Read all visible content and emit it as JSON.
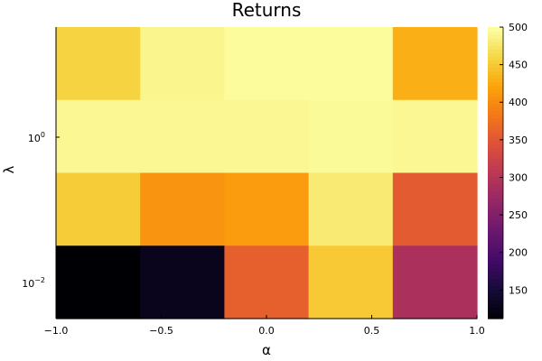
{
  "chart_data": {
    "type": "heatmap",
    "title": "Returns",
    "xlabel": "α",
    "ylabel": "λ",
    "x_tick_labels": [
      "−1.0",
      "−0.5",
      "0.0",
      "0.5",
      "1.0"
    ],
    "x_ticks": [
      -1.0,
      -0.5,
      0.0,
      0.5,
      1.0
    ],
    "xlim": [
      -1.0,
      1.0
    ],
    "y_scale": "log",
    "y_tick_labels": [
      {
        "base": "10",
        "exp": "0",
        "value": 1
      },
      {
        "base": "10",
        "exp": "−2",
        "value": 0.01
      }
    ],
    "x_centers": [
      -0.8,
      -0.4,
      0.0,
      0.4,
      0.8
    ],
    "row_order": "top-to-bottom",
    "values": [
      [
        458,
        490,
        497,
        497,
        430
      ],
      [
        493,
        493,
        493,
        495,
        493
      ],
      [
        453,
        408,
        415,
        480,
        355
      ],
      [
        112,
        130,
        360,
        450,
        290
      ]
    ],
    "colorbar": {
      "range": [
        112,
        500
      ],
      "ticks": [
        150,
        200,
        250,
        300,
        350,
        400,
        450,
        500
      ],
      "colormap": "inferno"
    },
    "grid": false,
    "legend": "none"
  }
}
